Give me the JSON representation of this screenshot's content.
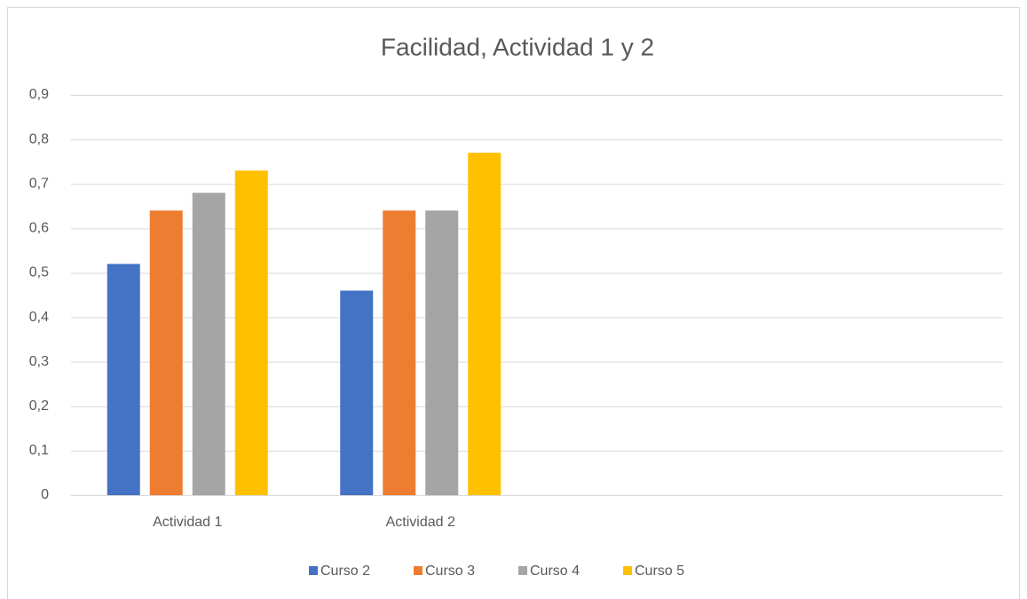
{
  "chart_data": {
    "type": "bar",
    "title": "Facilidad, Actividad 1 y 2",
    "categories": [
      "Actividad 1",
      "Actividad 2",
      null,
      null
    ],
    "series": [
      {
        "name": "Curso 2",
        "color": "#4472c4",
        "values": [
          0.52,
          0.46,
          null,
          null
        ]
      },
      {
        "name": "Curso 3",
        "color": "#ed7d31",
        "values": [
          0.64,
          0.64,
          null,
          null
        ]
      },
      {
        "name": "Curso 4",
        "color": "#a5a5a5",
        "values": [
          0.68,
          0.64,
          null,
          null
        ]
      },
      {
        "name": "Curso 5",
        "color": "#ffc000",
        "values": [
          0.73,
          0.77,
          null,
          null
        ]
      }
    ],
    "ylim": [
      0,
      0.9
    ],
    "yticks": [
      0,
      {
        "value": 0.1,
        "label": "0,1"
      },
      {
        "value": 0.2,
        "label": "0,2"
      },
      {
        "value": 0.3,
        "label": "0,3"
      },
      {
        "value": 0.4,
        "label": "0,4"
      },
      {
        "value": 0.5,
        "label": "0,5"
      },
      {
        "value": 0.6,
        "label": "0,6"
      },
      {
        "value": 0.7,
        "label": "0,7"
      },
      {
        "value": 0.8,
        "label": "0,8"
      },
      {
        "value": 0.9,
        "label": "0,9"
      }
    ],
    "grid": true,
    "legend": "bottom"
  }
}
